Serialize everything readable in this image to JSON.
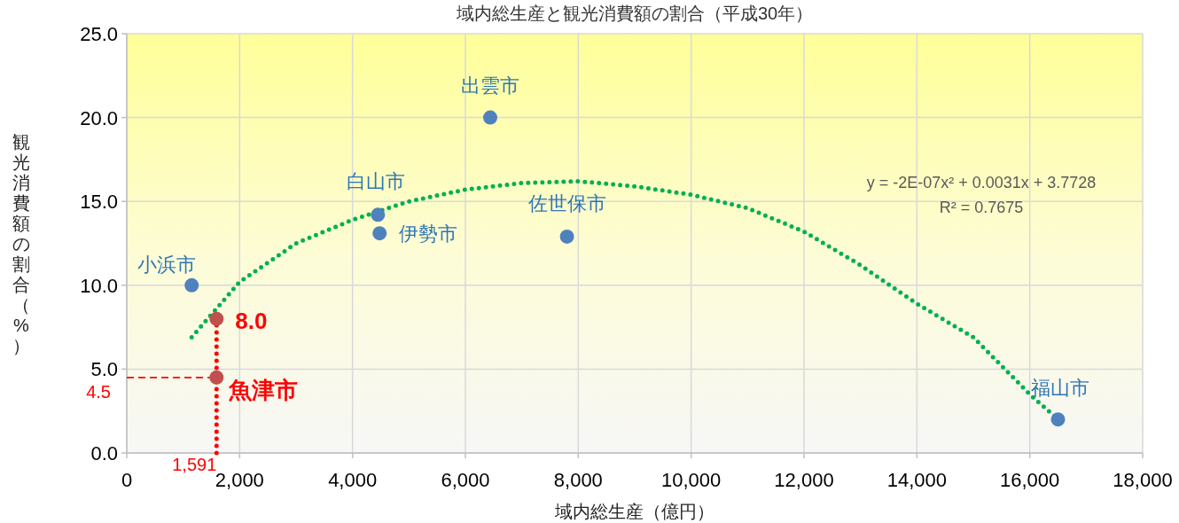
{
  "chart_data": {
    "type": "scatter",
    "title": "域内総生産と観光消費額の割合（平成30年）",
    "xlabel": "域内総生産（億円）",
    "ylabel": "観光消費額の割合（%）",
    "xlim": [
      0,
      18000
    ],
    "xticks": [
      0,
      {
        "value": 2000,
        "label": "2,000"
      },
      {
        "value": 4000,
        "label": "4,000"
      },
      {
        "value": 6000,
        "label": "6,000"
      },
      {
        "value": 8000,
        "label": "8,000"
      },
      {
        "value": 10000,
        "label": "10,000"
      },
      {
        "value": 12000,
        "label": "12,000"
      },
      {
        "value": 14000,
        "label": "14,000"
      },
      {
        "value": 16000,
        "label": "16,000"
      },
      {
        "value": 18000,
        "label": "18,000"
      }
    ],
    "ylim": [
      0,
      25
    ],
    "yticks": [
      {
        "value": 0,
        "label": "0.0"
      },
      {
        "value": 5,
        "label": "5.0"
      },
      {
        "value": 10,
        "label": "10.0"
      },
      {
        "value": 15,
        "label": "15.0"
      },
      {
        "value": 20,
        "label": "20.0"
      },
      {
        "value": 25,
        "label": "25.0"
      }
    ],
    "grid": true,
    "marker": "circle",
    "series": [
      {
        "type": "scatter",
        "color": "#4f81bd",
        "x": [
          1150,
          4450,
          4480,
          6440,
          7800,
          16500
        ],
        "values": [
          10.0,
          14.2,
          13.1,
          20.0,
          12.9,
          2.0
        ]
      },
      {
        "type": "scatter",
        "color": "#c0504d",
        "x": [
          1591,
          1591
        ],
        "values": [
          4.5,
          8.0
        ]
      },
      {
        "type": "line",
        "color": "#00b050",
        "line_style": "dotted",
        "marker": "none",
        "x": [
          1150,
          2000,
          3000,
          4000,
          5000,
          6000,
          7000,
          8000,
          9000,
          10000,
          11000,
          12000,
          13000,
          14000,
          15000,
          16000,
          16500
        ],
        "values": [
          6.9,
          10.2,
          12.5,
          13.9,
          15.0,
          15.7,
          16.1,
          16.2,
          15.9,
          15.4,
          14.6,
          13.2,
          11.2,
          8.9,
          6.9,
          3.5,
          2.0
        ]
      },
      {
        "type": "line",
        "color": "#ff0000",
        "line_style": "dashed",
        "marker": "none",
        "x": [
          0,
          1591
        ],
        "values": [
          4.5,
          4.5
        ]
      },
      {
        "type": "line",
        "color": "#ff0000",
        "line_style": "dotted",
        "marker": "none",
        "x": [
          1591,
          1591
        ],
        "values": [
          0,
          8.0
        ]
      }
    ],
    "annotations": [
      {
        "text": "小浜市",
        "x": 1150,
        "y": 10.0
      },
      {
        "text": "白山市",
        "x": 4450,
        "y": 14.2
      },
      {
        "text": "伊勢市",
        "x": 4480,
        "y": 13.1
      },
      {
        "text": "出雲市",
        "x": 6440,
        "y": 20.0
      },
      {
        "text": "佐世保市",
        "x": 7800,
        "y": 12.9
      },
      {
        "text": "福山市",
        "x": 16500,
        "y": 2.0
      },
      {
        "text": "8.0",
        "x": 1591,
        "y": 8.0
      },
      {
        "text": "魚津市",
        "x": 1591,
        "y": 4.5
      },
      {
        "text": "4.5",
        "x": 0,
        "y": 4.5
      },
      {
        "text": "1,591",
        "x": 1591,
        "y": 0
      },
      "y = -2E-07x² + 0.0031x + 3.7728",
      "R² = 0.7675"
    ]
  }
}
